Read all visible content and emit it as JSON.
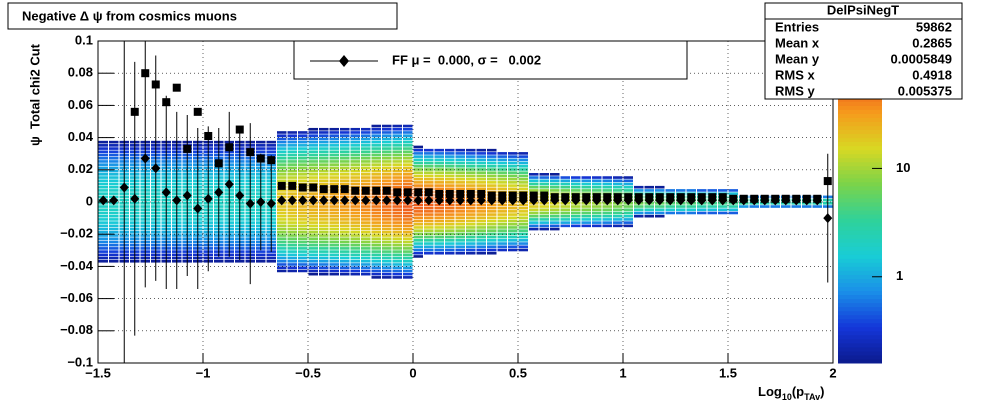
{
  "chart_data": {
    "type": "profile-heatmap",
    "title": "Negative Δ ψ from cosmics muons",
    "y_label": "ψ  Total chi2 Cut",
    "x_label": {
      "main": "Log",
      "sub1": "10",
      "mid": "(p",
      "sub2": "TAv",
      "end": ")"
    },
    "xlim": [
      -1.5,
      2
    ],
    "ylim": [
      -0.1,
      0.1
    ],
    "xticks": [
      {
        "value": -1.5,
        "label": "−1.5"
      },
      {
        "value": -1,
        "label": "−1"
      },
      {
        "value": -0.5,
        "label": "−0.5"
      },
      0,
      0.5,
      1,
      1.5,
      2
    ],
    "yticks": [
      {
        "value": -0.1,
        "label": "−0.1"
      },
      {
        "value": -0.08,
        "label": "−0.08"
      },
      {
        "value": -0.06,
        "label": "−0.06"
      },
      {
        "value": -0.04,
        "label": "−0.04"
      },
      {
        "value": -0.02,
        "label": "−0.02"
      },
      0,
      0.02,
      0.04,
      0.06,
      0.08,
      0.1
    ],
    "grid": true,
    "zlim": [
      0.16,
      150
    ],
    "zlog": true,
    "zticks": [
      1,
      10
    ],
    "palette": [
      "#0b1a8c",
      "#1436d9",
      "#1a8fe8",
      "#19cdd6",
      "#2fd29a",
      "#7ad34a",
      "#d8d823",
      "#f59b1c",
      "#ee4a1e",
      "#c21616"
    ],
    "x": [
      -1.475,
      -1.425,
      -1.375,
      -1.325,
      -1.275,
      -1.225,
      -1.175,
      -1.125,
      -1.075,
      -1.025,
      -0.975,
      -0.925,
      -0.875,
      -0.825,
      -0.775,
      -0.725,
      -0.675,
      -0.625,
      -0.575,
      -0.525,
      -0.475,
      -0.425,
      -0.375,
      -0.325,
      -0.275,
      -0.225,
      -0.175,
      -0.125,
      -0.075,
      -0.025,
      0.025,
      0.075,
      0.125,
      0.175,
      0.225,
      0.275,
      0.325,
      0.375,
      0.425,
      0.475,
      0.525,
      0.575,
      0.625,
      0.675,
      0.725,
      0.775,
      0.825,
      0.875,
      0.925,
      0.975,
      1.025,
      1.075,
      1.125,
      1.175,
      1.225,
      1.275,
      1.325,
      1.375,
      1.425,
      1.475,
      1.525,
      1.575,
      1.625,
      1.675,
      1.725,
      1.775,
      1.825,
      1.875,
      1.925,
      1.975
    ],
    "density": {
      "spread": [
        0.06,
        0.06,
        0.06,
        0.06,
        0.06,
        0.06,
        0.06,
        0.06,
        0.06,
        0.06,
        0.06,
        0.06,
        0.06,
        0.06,
        0.06,
        0.06,
        0.06,
        0.05,
        0.05,
        0.05,
        0.05,
        0.05,
        0.05,
        0.05,
        0.05,
        0.05,
        0.05,
        0.05,
        0.05,
        0.05,
        0.035,
        0.035,
        0.035,
        0.035,
        0.035,
        0.035,
        0.035,
        0.035,
        0.035,
        0.035,
        0.035,
        0.02,
        0.02,
        0.02,
        0.02,
        0.02,
        0.02,
        0.02,
        0.02,
        0.02,
        0.02,
        0.012,
        0.012,
        0.012,
        0.012,
        0.012,
        0.012,
        0.012,
        0.012,
        0.012,
        0.012,
        0.006,
        0.006,
        0.006,
        0.006,
        0.006,
        0.006,
        0.006,
        0.006,
        0.006
      ],
      "peak": [
        2,
        2,
        2,
        2,
        2,
        2,
        2,
        2,
        2,
        2,
        2,
        2,
        2,
        2,
        2,
        2,
        2,
        20,
        22,
        24,
        26,
        28,
        30,
        33,
        36,
        40,
        45,
        50,
        55,
        60,
        60,
        58,
        55,
        50,
        45,
        40,
        36,
        32,
        28,
        25,
        22,
        20,
        18,
        16,
        14,
        12,
        11,
        10,
        9,
        8,
        7,
        7,
        6,
        6,
        5,
        5,
        5,
        4,
        4,
        4,
        4,
        4,
        3,
        3,
        3,
        3,
        3,
        3,
        3,
        3
      ]
    },
    "series": [
      {
        "marker": "square",
        "color": "#000000",
        "values": [
          null,
          null,
          null,
          0.056,
          0.08,
          0.073,
          0.062,
          0.071,
          0.033,
          0.056,
          0.041,
          0.024,
          0.034,
          0.045,
          0.031,
          0.027,
          0.026,
          0.01,
          0.01,
          0.009,
          0.009,
          0.008,
          0.008,
          0.008,
          0.007,
          0.007,
          0.007,
          0.007,
          0.006,
          0.006,
          0.006,
          0.006,
          0.005,
          0.005,
          0.005,
          0.005,
          0.005,
          0.004,
          0.004,
          0.004,
          0.004,
          0.004,
          0.004,
          0.003,
          0.003,
          0.003,
          0.003,
          0.003,
          0.003,
          0.003,
          0.003,
          0.003,
          0.003,
          0.003,
          0.003,
          0.003,
          0.003,
          0.003,
          0.003,
          0.003,
          0.002,
          0.002,
          0.002,
          0.002,
          0.002,
          0.002,
          0.002,
          0.002,
          0.002,
          0.013
        ]
      },
      {
        "marker": "diamond",
        "color": "#000000",
        "values": [
          0.001,
          0.001,
          0.009,
          0.002,
          0.027,
          0.021,
          0.006,
          0.001,
          0.004,
          -0.004,
          0.002,
          0.006,
          0.011,
          0.004,
          -0.001,
          0,
          -0.001,
          0.001,
          0.001,
          0.001,
          0.001,
          0.001,
          0.001,
          0.001,
          0.001,
          0.001,
          0.001,
          0.001,
          0.001,
          0.001,
          0.001,
          0.001,
          0.001,
          0.001,
          0.001,
          0.001,
          0.001,
          0.001,
          0.001,
          0.001,
          0.001,
          0.001,
          0.001,
          0.001,
          0.001,
          0.001,
          0.001,
          0.001,
          0.001,
          0.001,
          0.001,
          0.001,
          0.001,
          0.001,
          0.001,
          0.001,
          0.001,
          0.001,
          0.001,
          0.001,
          0.001,
          0.001,
          0.001,
          0.001,
          0.001,
          0.001,
          0.001,
          0.001,
          0.001,
          -0.01
        ],
        "errors": [
          0.001,
          0.001,
          0.11,
          0.085,
          0.08,
          0.07,
          0.06,
          0.055,
          0.05,
          0.05,
          0.045,
          0.04,
          0.045,
          0.04,
          0.05,
          0.03,
          0.03,
          0.001,
          0.001,
          0.001,
          0.001,
          0.001,
          0.001,
          0.001,
          0.001,
          0.001,
          0.001,
          0.001,
          0.001,
          0.001,
          0.001,
          0.001,
          0.001,
          0.001,
          0.001,
          0.001,
          0.001,
          0.001,
          0.001,
          0.001,
          0.001,
          0.001,
          0.001,
          0.001,
          0.001,
          0.001,
          0.001,
          0.001,
          0.001,
          0.001,
          0.001,
          0.001,
          0.001,
          0.001,
          0.001,
          0.001,
          0.001,
          0.001,
          0.001,
          0.001,
          0.001,
          0.001,
          0.001,
          0.001,
          0.001,
          0.001,
          0.001,
          0.001,
          0.001,
          0.04
        ]
      }
    ],
    "legend": {
      "text": "FF μ =  0.000, σ =   0.002",
      "position": "top"
    },
    "stats": {
      "title": "DelPsiNegT",
      "rows": [
        {
          "label": "Entries",
          "value": 59862
        },
        {
          "label": "Mean x",
          "value": 0.2865
        },
        {
          "label": "Mean y",
          "value": 0.0005849
        },
        {
          "label": "RMS x",
          "value": 0.4918
        },
        {
          "label": "RMS y",
          "value": 0.005375
        }
      ]
    }
  }
}
